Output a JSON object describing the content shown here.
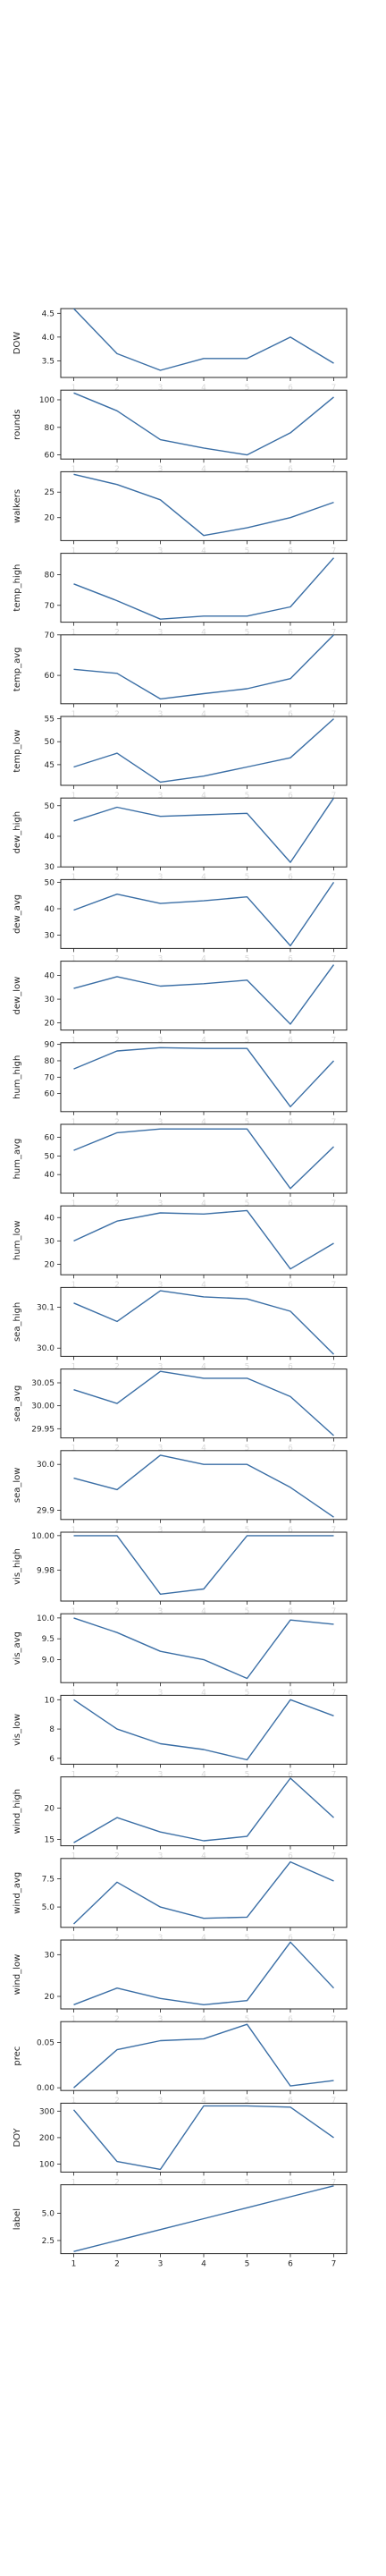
{
  "chart_data": [
    {
      "type": "line",
      "ylabel": "DOW",
      "x": [
        1,
        2,
        3,
        4,
        5,
        6,
        7
      ],
      "values": [
        4.6,
        3.65,
        3.3,
        3.55,
        3.55,
        4.0,
        3.45
      ],
      "ylim": [
        3.15,
        4.6
      ],
      "yticks": [
        3.5,
        4.0,
        4.5
      ],
      "ytick_labels": [
        "3.5",
        "4.0",
        "4.5"
      ]
    },
    {
      "type": "line",
      "ylabel": "rounds",
      "x": [
        1,
        2,
        3,
        4,
        5,
        6,
        7
      ],
      "values": [
        105,
        92,
        71,
        65,
        60,
        76,
        102
      ],
      "ylim": [
        57,
        107
      ],
      "yticks": [
        60,
        80,
        100
      ],
      "ytick_labels": [
        "60",
        "80",
        "100"
      ]
    },
    {
      "type": "line",
      "ylabel": "walkers",
      "x": [
        1,
        2,
        3,
        4,
        5,
        6,
        7
      ],
      "values": [
        28.5,
        26.5,
        23.5,
        16.5,
        18.0,
        20.0,
        23.0
      ],
      "ylim": [
        15.5,
        29
      ],
      "yticks": [
        20,
        25
      ],
      "ytick_labels": [
        "20",
        "25"
      ]
    },
    {
      "type": "line",
      "ylabel": "temp_high",
      "x": [
        1,
        2,
        3,
        4,
        5,
        6,
        7
      ],
      "values": [
        77,
        71.5,
        65.5,
        66.5,
        66.5,
        69.5,
        85.5
      ],
      "ylim": [
        64.5,
        87
      ],
      "yticks": [
        70,
        80
      ],
      "ytick_labels": [
        "70",
        "80"
      ]
    },
    {
      "type": "line",
      "ylabel": "temp_avg",
      "x": [
        1,
        2,
        3,
        4,
        5,
        6,
        7
      ],
      "values": [
        61.5,
        60.5,
        54.2,
        55.5,
        56.7,
        59.2,
        70
      ],
      "ylim": [
        53,
        70
      ],
      "yticks": [
        60,
        70
      ],
      "ytick_labels": [
        "60",
        "70"
      ]
    },
    {
      "type": "line",
      "ylabel": "temp_low",
      "x": [
        1,
        2,
        3,
        4,
        5,
        6,
        7
      ],
      "values": [
        44.5,
        47.5,
        41.2,
        42.5,
        44.5,
        46.5,
        55
      ],
      "ylim": [
        40.5,
        55.5
      ],
      "yticks": [
        45,
        50,
        55
      ],
      "ytick_labels": [
        "45",
        "50",
        "55"
      ]
    },
    {
      "type": "line",
      "ylabel": "dew_high",
      "x": [
        1,
        2,
        3,
        4,
        5,
        6,
        7
      ],
      "values": [
        45,
        49.5,
        46.5,
        47,
        47.5,
        31.5,
        52.5
      ],
      "ylim": [
        30,
        52.5
      ],
      "yticks": [
        30,
        40,
        50
      ],
      "ytick_labels": [
        "30",
        "40",
        "50"
      ]
    },
    {
      "type": "line",
      "ylabel": "dew_avg",
      "x": [
        1,
        2,
        3,
        4,
        5,
        6,
        7
      ],
      "values": [
        39.5,
        45.5,
        42,
        43,
        44.5,
        26,
        50
      ],
      "ylim": [
        25,
        51
      ],
      "yticks": [
        30,
        40,
        50
      ],
      "ytick_labels": [
        "30",
        "40",
        "50"
      ]
    },
    {
      "type": "line",
      "ylabel": "dew_low",
      "x": [
        1,
        2,
        3,
        4,
        5,
        6,
        7
      ],
      "values": [
        34.5,
        39.5,
        35.5,
        36.5,
        38,
        19.5,
        44.5
      ],
      "ylim": [
        17,
        46
      ],
      "yticks": [
        20,
        30,
        40
      ],
      "ytick_labels": [
        "20",
        "30",
        "40"
      ]
    },
    {
      "type": "line",
      "ylabel": "hum_high",
      "x": [
        1,
        2,
        3,
        4,
        5,
        6,
        7
      ],
      "values": [
        75,
        86,
        88,
        87.5,
        87.5,
        52,
        80
      ],
      "ylim": [
        49,
        91
      ],
      "yticks": [
        60,
        70,
        80,
        90
      ],
      "ytick_labels": [
        "60",
        "70",
        "80",
        "90"
      ]
    },
    {
      "type": "line",
      "ylabel": "hum_avg",
      "x": [
        1,
        2,
        3,
        4,
        5,
        6,
        7
      ],
      "values": [
        53,
        62.5,
        64.5,
        64.5,
        64.5,
        32.5,
        55
      ],
      "ylim": [
        30,
        67
      ],
      "yticks": [
        40,
        50,
        60
      ],
      "ytick_labels": [
        "40",
        "50",
        "60"
      ]
    },
    {
      "type": "line",
      "ylabel": "hum_low",
      "x": [
        1,
        2,
        3,
        4,
        5,
        6,
        7
      ],
      "values": [
        30,
        38.5,
        42,
        41.5,
        43,
        18,
        29
      ],
      "ylim": [
        15.5,
        45
      ],
      "yticks": [
        20,
        30,
        40
      ],
      "ytick_labels": [
        "20",
        "30",
        "40"
      ]
    },
    {
      "type": "line",
      "ylabel": "sea_high",
      "x": [
        1,
        2,
        3,
        4,
        5,
        6,
        7
      ],
      "values": [
        30.11,
        30.065,
        30.14,
        30.125,
        30.12,
        30.09,
        29.985
      ],
      "ylim": [
        29.98,
        30.148
      ],
      "yticks": [
        30.0,
        30.1
      ],
      "ytick_labels": [
        "30.0",
        "30.1"
      ]
    },
    {
      "type": "line",
      "ylabel": "sea_avg",
      "x": [
        1,
        2,
        3,
        4,
        5,
        6,
        7
      ],
      "values": [
        30.035,
        30.005,
        30.075,
        30.06,
        30.06,
        30.02,
        29.935
      ],
      "ylim": [
        29.93,
        30.08
      ],
      "yticks": [
        29.95,
        30.0,
        30.05
      ],
      "ytick_labels": [
        "29.95",
        "30.00",
        "30.05"
      ]
    },
    {
      "type": "line",
      "ylabel": "sea_low",
      "x": [
        1,
        2,
        3,
        4,
        5,
        6,
        7
      ],
      "values": [
        29.97,
        29.945,
        30.02,
        30.0,
        30.0,
        29.95,
        29.885
      ],
      "ylim": [
        29.88,
        30.03
      ],
      "yticks": [
        29.9,
        30.0
      ],
      "ytick_labels": [
        "29.9",
        "30.0"
      ]
    },
    {
      "type": "line",
      "ylabel": "vis_high",
      "x": [
        1,
        2,
        3,
        4,
        5,
        6,
        7
      ],
      "values": [
        10.0,
        10.0,
        9.966,
        9.969,
        10.0,
        10.0,
        10.0
      ],
      "ylim": [
        9.962,
        10.002
      ],
      "yticks": [
        9.98,
        10.0
      ],
      "ytick_labels": [
        "9.98",
        "10.00"
      ]
    },
    {
      "type": "line",
      "ylabel": "vis_avg",
      "x": [
        1,
        2,
        3,
        4,
        5,
        6,
        7
      ],
      "values": [
        10.0,
        9.65,
        9.2,
        9.0,
        8.55,
        9.95,
        9.85
      ],
      "ylim": [
        8.45,
        10.1
      ],
      "yticks": [
        9.0,
        9.5,
        10.0
      ],
      "ytick_labels": [
        "9.0",
        "9.5",
        "10.0"
      ]
    },
    {
      "type": "line",
      "ylabel": "vis_low",
      "x": [
        1,
        2,
        3,
        4,
        5,
        6,
        7
      ],
      "values": [
        10.0,
        8.0,
        7.0,
        6.6,
        5.9,
        10.0,
        8.9
      ],
      "ylim": [
        5.6,
        10.3
      ],
      "yticks": [
        6,
        8,
        10
      ],
      "ytick_labels": [
        "6",
        "8",
        "10"
      ]
    },
    {
      "type": "line",
      "ylabel": "wind_high",
      "x": [
        1,
        2,
        3,
        4,
        5,
        6,
        7
      ],
      "values": [
        14.5,
        18.5,
        16.2,
        14.8,
        15.5,
        24.8,
        18.5
      ],
      "ylim": [
        14,
        25
      ],
      "yticks": [
        15,
        20
      ],
      "ytick_labels": [
        "15",
        "20"
      ]
    },
    {
      "type": "line",
      "ylabel": "wind_avg",
      "x": [
        1,
        2,
        3,
        4,
        5,
        6,
        7
      ],
      "values": [
        3.5,
        7.2,
        5.0,
        4.0,
        4.1,
        9.0,
        7.3
      ],
      "ylim": [
        3.2,
        9.3
      ],
      "yticks": [
        5.0,
        7.5
      ],
      "ytick_labels": [
        "5.0",
        "7.5"
      ]
    },
    {
      "type": "line",
      "ylabel": "wind_low",
      "x": [
        1,
        2,
        3,
        4,
        5,
        6,
        7
      ],
      "values": [
        18,
        22,
        19.5,
        18,
        19,
        33,
        22
      ],
      "ylim": [
        17,
        33.5
      ],
      "yticks": [
        20,
        30
      ],
      "ytick_labels": [
        "20",
        "30"
      ]
    },
    {
      "type": "line",
      "ylabel": "prec",
      "x": [
        1,
        2,
        3,
        4,
        5,
        6,
        7
      ],
      "values": [
        0.0,
        0.042,
        0.052,
        0.054,
        0.07,
        0.002,
        0.008
      ],
      "ylim": [
        -0.003,
        0.073
      ],
      "yticks": [
        0.0,
        0.05
      ],
      "ytick_labels": [
        "0.00",
        "0.05"
      ]
    },
    {
      "type": "line",
      "ylabel": "DOY",
      "x": [
        1,
        2,
        3,
        4,
        5,
        6,
        7
      ],
      "values": [
        305,
        110,
        80,
        320,
        320,
        315,
        200
      ],
      "ylim": [
        70,
        330
      ],
      "yticks": [
        100,
        200,
        300
      ],
      "ytick_labels": [
        "100",
        "200",
        "300"
      ]
    },
    {
      "type": "line",
      "ylabel": "label",
      "x": [
        1,
        2,
        3,
        4,
        5,
        6,
        7
      ],
      "values": [
        1.5,
        2.5,
        3.5,
        4.5,
        5.5,
        6.5,
        7.5
      ],
      "ylim": [
        1.3,
        7.6
      ],
      "yticks": [
        2.5,
        5.0
      ],
      "ytick_labels": [
        "2.5",
        "5.0"
      ]
    }
  ],
  "x_ticks": [
    1,
    2,
    3,
    4,
    5,
    6,
    7
  ],
  "x_tick_labels": [
    "1",
    "2",
    "3",
    "4",
    "5",
    "6",
    "7"
  ],
  "colors": {
    "line": "#3a6ea5",
    "axes": "#262626"
  }
}
